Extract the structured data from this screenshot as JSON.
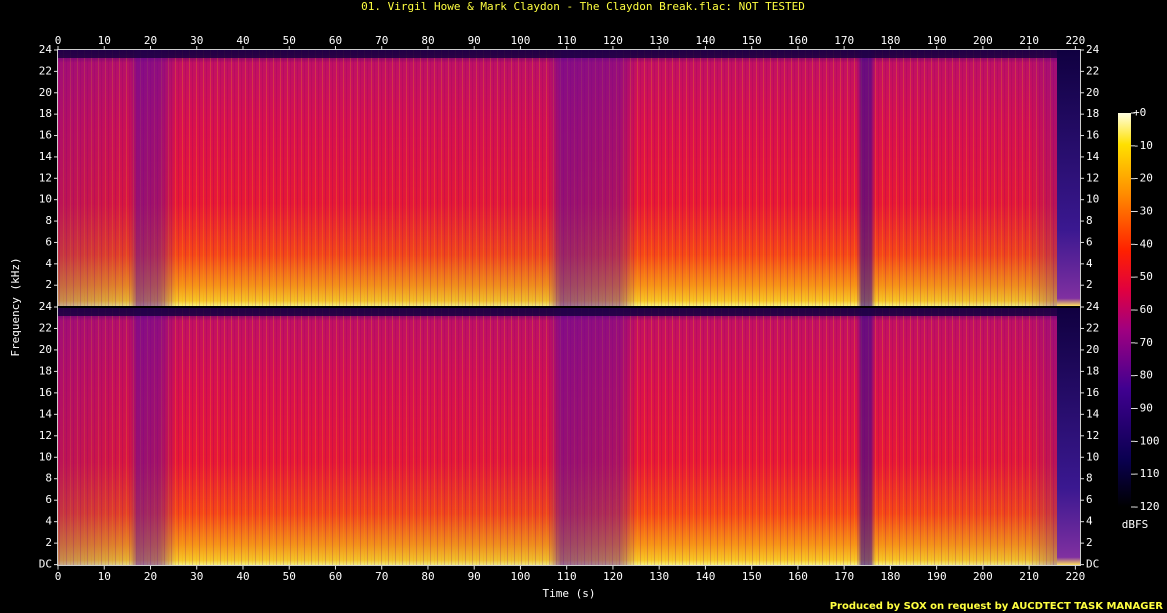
{
  "chart_data": [
    {
      "type": "spectrogram",
      "title": "01. Virgil Howe & Mark Claydon - The Claydon Break.flac: NOT TESTED",
      "ylabel": "Frequency (kHz)",
      "xlim": [
        0,
        221
      ],
      "xticks": [
        0,
        10,
        20,
        30,
        40,
        50,
        60,
        70,
        80,
        90,
        100,
        110,
        120,
        130,
        140,
        150,
        160,
        170,
        180,
        190,
        200,
        210,
        220
      ],
      "ylim": [
        0,
        24
      ],
      "yticks": [
        2,
        4,
        6,
        8,
        10,
        12,
        14,
        16,
        18,
        20,
        22,
        24
      ],
      "colorbar": {
        "label": "dBFS",
        "lim": [
          -120,
          0
        ],
        "ticks": [
          {
            "value": 0,
            "label": "+0"
          },
          -10,
          -20,
          -30,
          -40,
          -50,
          -60,
          -70,
          -80,
          -90,
          -100,
          -110,
          -120
        ]
      }
    },
    {
      "type": "spectrogram",
      "xlabel": "Time (s)",
      "note": "Produced by SOX on request by AUCDTECT TASK MANAGER",
      "xlim": [
        0,
        221
      ],
      "xticks": [
        0,
        10,
        20,
        30,
        40,
        50,
        60,
        70,
        80,
        90,
        100,
        110,
        120,
        130,
        140,
        150,
        160,
        170,
        180,
        190,
        200,
        210,
        220
      ],
      "ylim": [
        0,
        24
      ],
      "yticks": [
        {
          "value": 0,
          "label": "DC"
        },
        2,
        4,
        6,
        8,
        10,
        12,
        14,
        16,
        18,
        20,
        22,
        24
      ]
    }
  ]
}
